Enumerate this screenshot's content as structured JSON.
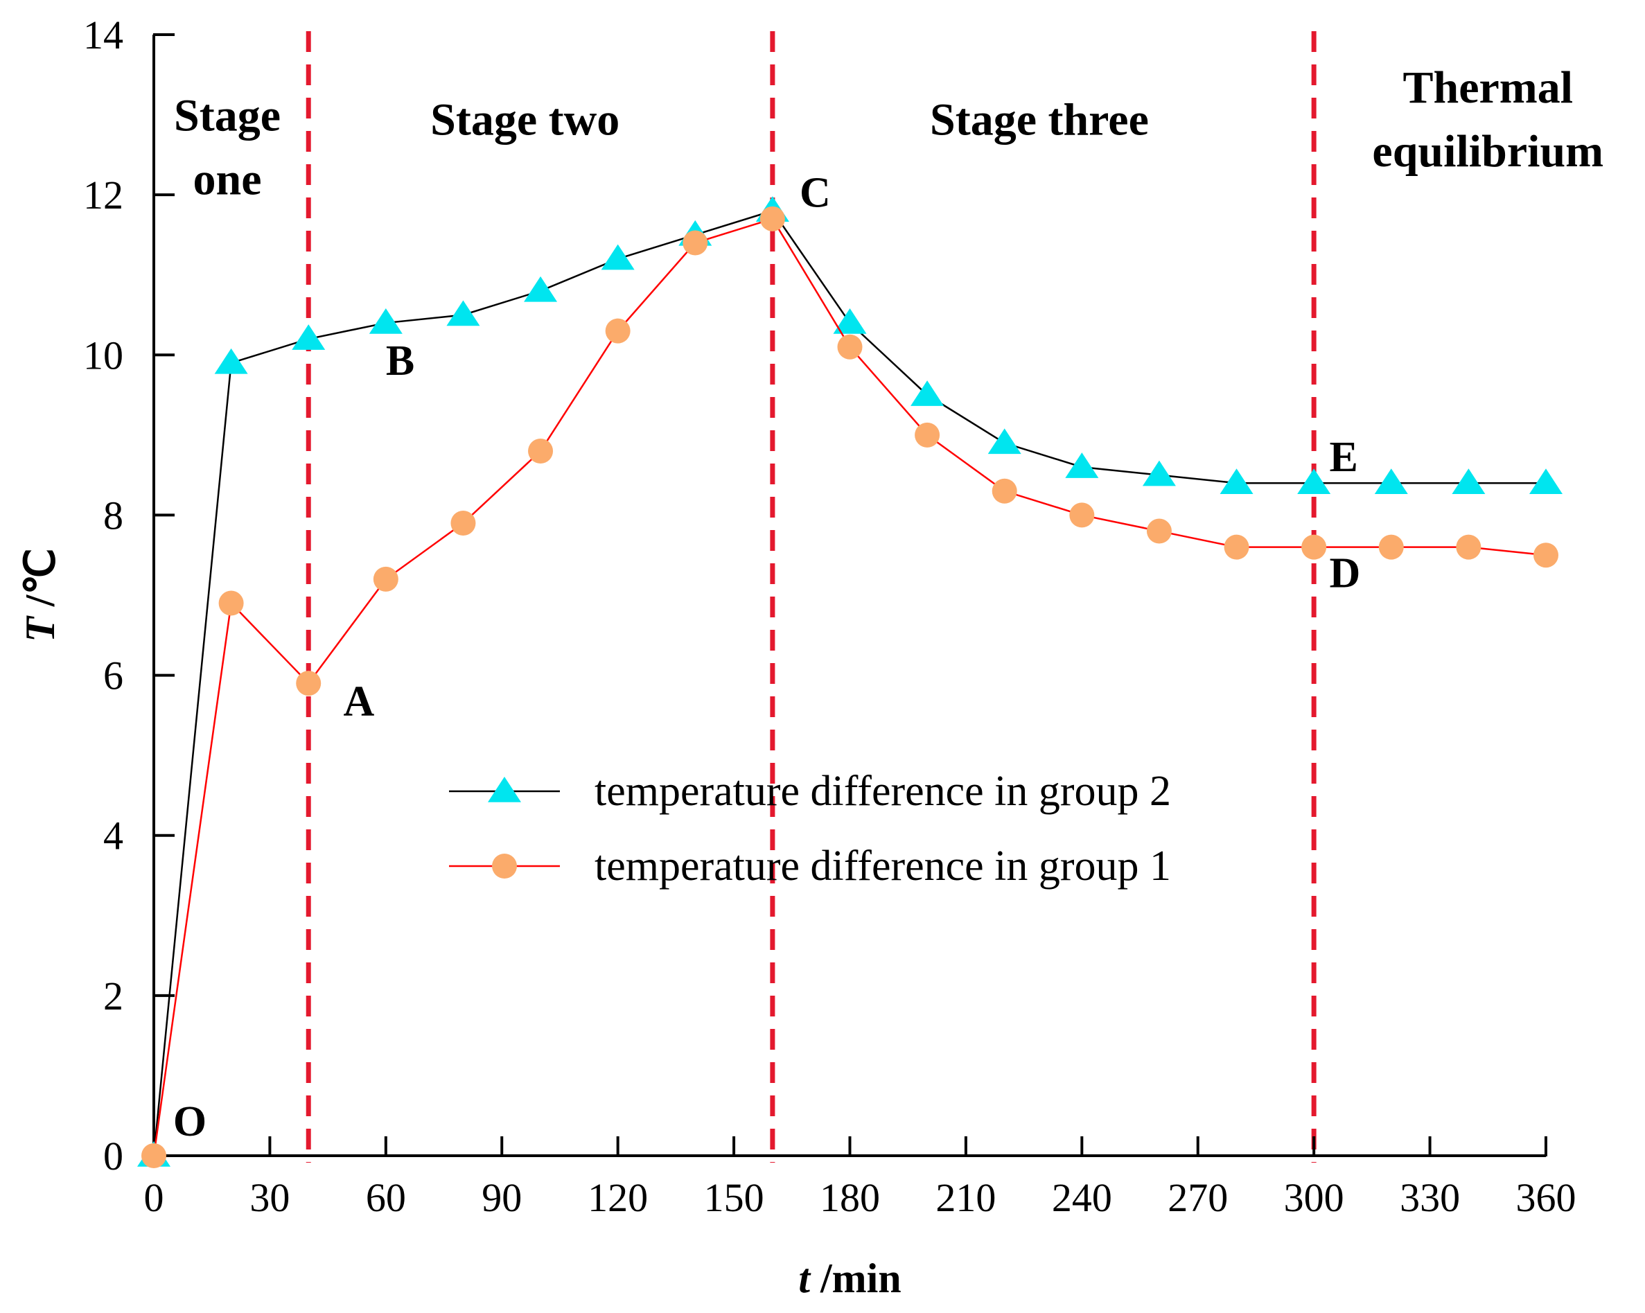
{
  "chart_data": {
    "type": "line",
    "x": [
      0,
      20,
      40,
      60,
      80,
      100,
      120,
      140,
      160,
      180,
      200,
      220,
      240,
      260,
      280,
      300,
      320,
      340,
      360
    ],
    "series": [
      {
        "name": "temperature difference in group 2",
        "marker": "triangle",
        "line_color": "#000000",
        "marker_color": "#00e5ef",
        "values": [
          0,
          9.9,
          10.2,
          10.4,
          10.5,
          10.8,
          11.2,
          11.5,
          11.8,
          10.4,
          9.5,
          8.9,
          8.6,
          8.5,
          8.4,
          8.4,
          8.4,
          8.4,
          8.4
        ]
      },
      {
        "name": "temperature difference in group 1",
        "marker": "circle",
        "line_color": "#ff0000",
        "marker_color": "#fbab6b",
        "values": [
          0,
          6.9,
          5.9,
          7.2,
          7.9,
          8.8,
          10.3,
          11.4,
          11.7,
          10.1,
          9.0,
          8.3,
          8.0,
          7.8,
          7.6,
          7.6,
          7.6,
          7.6,
          7.5
        ]
      }
    ],
    "xlabel_italic": "t",
    "xlabel_rest": " /min",
    "ylabel_italic": "T",
    "ylabel_rest": " /℃",
    "xlim": [
      0,
      360
    ],
    "ylim": [
      0,
      14
    ],
    "xticks": [
      0,
      30,
      60,
      90,
      120,
      150,
      180,
      210,
      240,
      270,
      300,
      330,
      360
    ],
    "yticks": [
      0,
      2,
      4,
      6,
      8,
      10,
      12,
      14
    ],
    "stage_dividers": [
      40,
      160,
      300
    ],
    "divider_color": "#e4192e",
    "stages": [
      {
        "lines": [
          "Stage",
          "one"
        ],
        "x_center": 19,
        "y_first": 12.8
      },
      {
        "lines": [
          "Stage two"
        ],
        "x_center": 96,
        "y_first": 12.75
      },
      {
        "lines": [
          "Stage three"
        ],
        "x_center": 229,
        "y_first": 12.75
      },
      {
        "lines": [
          "Thermal",
          "equilibrium"
        ],
        "x_center": 345,
        "y_first": 13.15
      }
    ],
    "point_labels": [
      {
        "text": "O",
        "x": 5,
        "y": 0.25
      },
      {
        "text": "A",
        "x": 49,
        "y": 5.5
      },
      {
        "text": "B",
        "x": 60,
        "y": 9.75
      },
      {
        "text": "C",
        "x": 167,
        "y": 11.85
      },
      {
        "text": "D",
        "x": 304,
        "y": 7.1
      },
      {
        "text": "E",
        "x": 304,
        "y": 8.55
      }
    ],
    "legend_position": "center"
  }
}
